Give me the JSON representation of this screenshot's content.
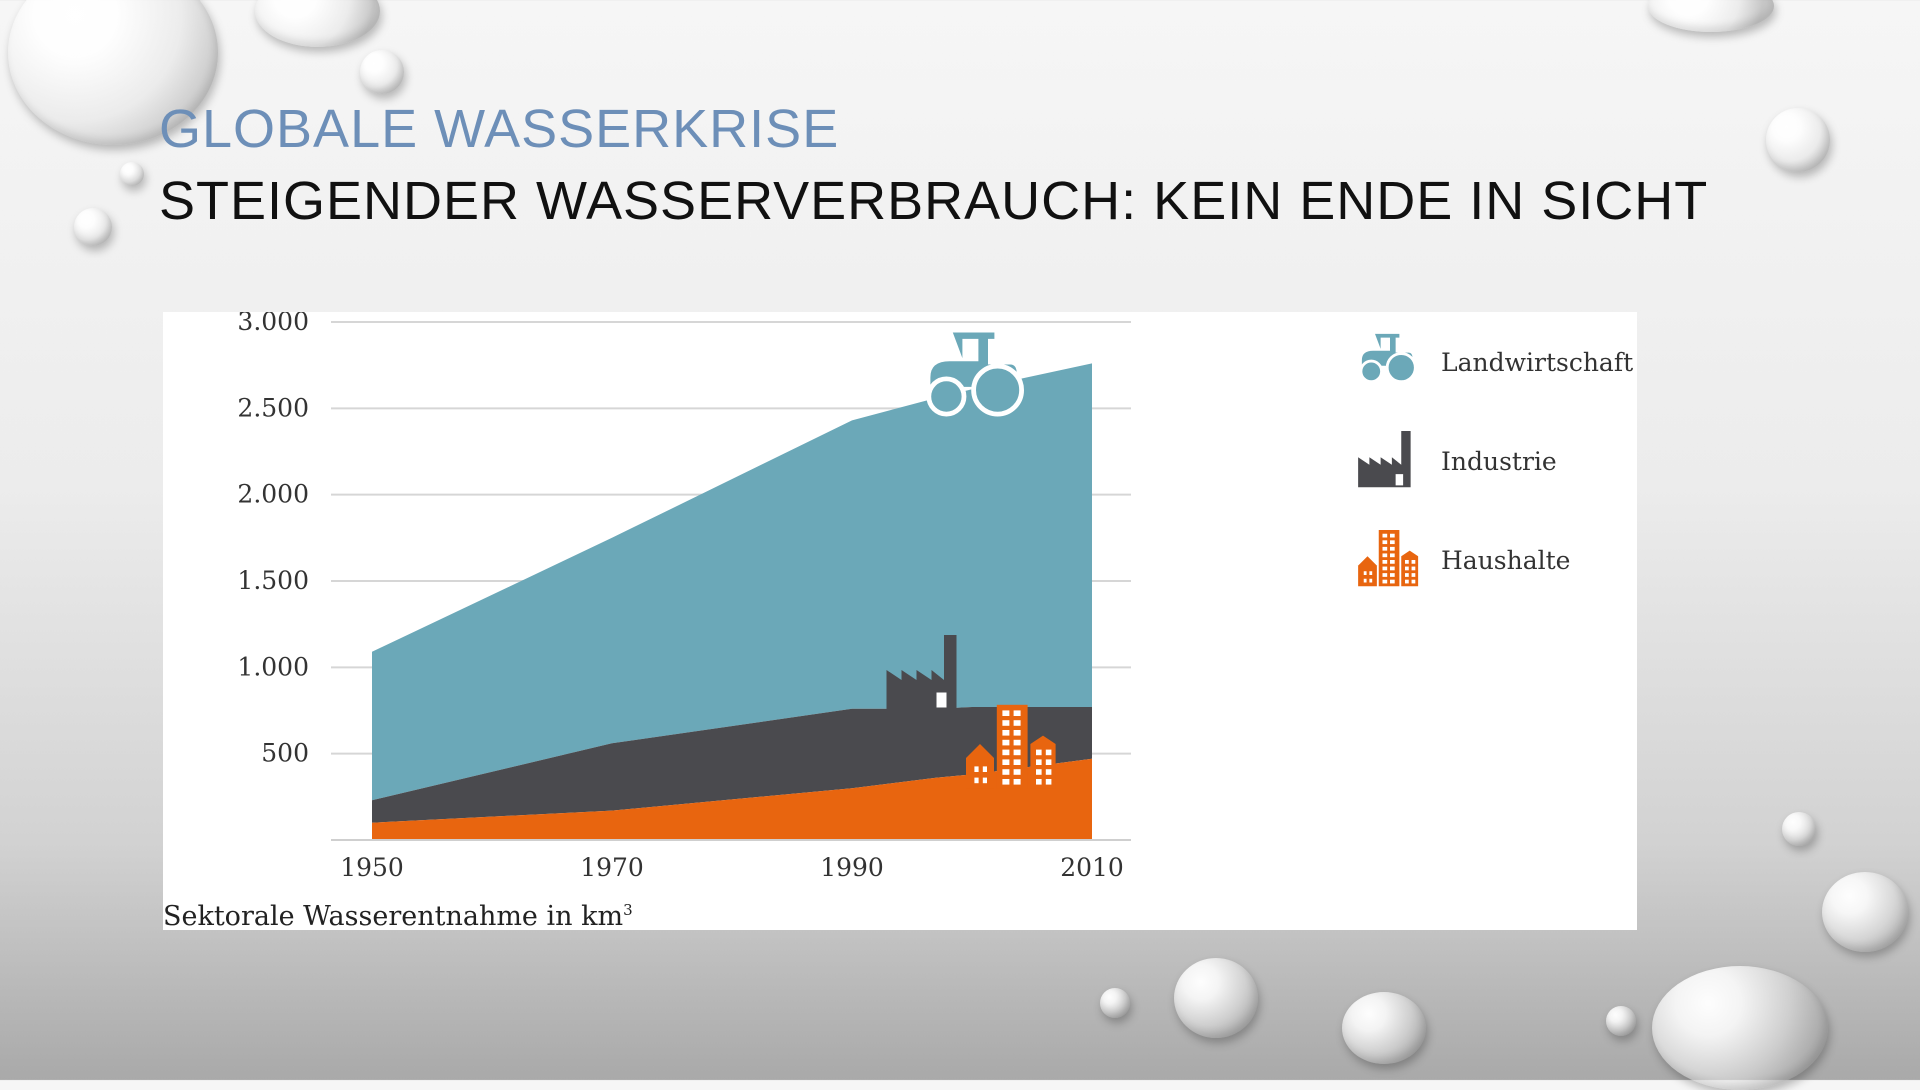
{
  "slide": {
    "kicker": "GLOBALE WASSERKRISE",
    "title": "STEIGENDER WASSERVERBRAUCH: KEIN ENDE IN SICHT"
  },
  "chart_data": {
    "type": "area",
    "stacked": true,
    "x": [
      1950,
      1970,
      1990,
      1997,
      2000,
      2010
    ],
    "xticks": [
      "1950",
      "1970",
      "1990",
      "2010"
    ],
    "yticks": [
      "3.000",
      "2.500",
      "2.000",
      "1.500",
      "1.000",
      "500"
    ],
    "ylim": [
      0,
      3000
    ],
    "grid": true,
    "legend_position": "right",
    "caption_text": "Sektorale Wasserentnahme in km",
    "caption_sup": "3",
    "series": [
      {
        "name": "Haushalte",
        "color": "#e8650f",
        "icon": "houses-icon",
        "values": [
          100,
          170,
          300,
          360,
          380,
          470
        ]
      },
      {
        "name": "Industrie",
        "color": "#4a4a4e",
        "icon": "factory-icon",
        "values": [
          130,
          390,
          460,
          400,
          390,
          300
        ]
      },
      {
        "name": "Landwirtschaft",
        "color": "#6ba8b8",
        "icon": "tractor-icon",
        "values": [
          860,
          1190,
          1670,
          1800,
          1840,
          1990
        ]
      }
    ],
    "annotations": [
      {
        "icon": "tractor-icon",
        "x": 2000,
        "y": 2680,
        "color": "#6ba8b8"
      },
      {
        "icon": "factory-icon",
        "x": 1996,
        "y": 970,
        "color": "#4a4a4e"
      },
      {
        "icon": "houses-icon",
        "x": 2003,
        "y": 540,
        "color": "#e8650f"
      }
    ]
  }
}
